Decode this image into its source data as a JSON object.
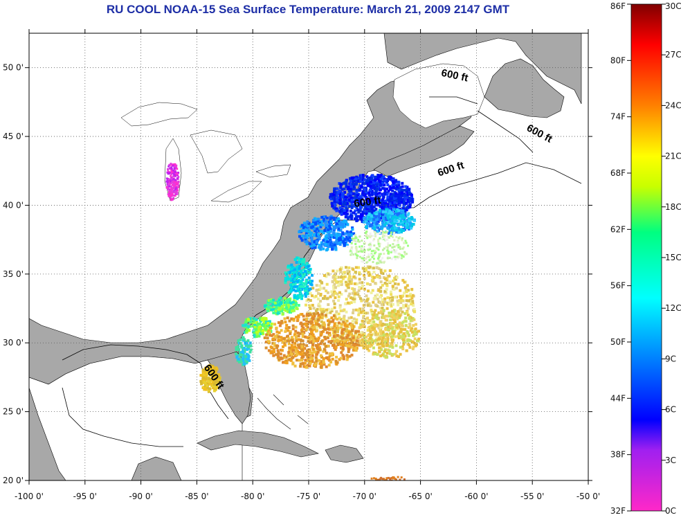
{
  "title": "RU COOL  NOAA-15  Sea Surface Temperature:  March 21, 2009 2147 GMT",
  "colors": {
    "title": "#1d2ea6",
    "land": "#a8a8a8",
    "nodata": "#ffffff",
    "grid": "#555555"
  },
  "map": {
    "lon_range": [
      -100,
      -50
    ],
    "lat_range": [
      20,
      52.5
    ],
    "lon_ticks": [
      {
        "value": -100,
        "label": "-100 0'"
      },
      {
        "value": -95,
        "label": "-95 0'"
      },
      {
        "value": -90,
        "label": "-90 0'"
      },
      {
        "value": -85,
        "label": "-85 0'"
      },
      {
        "value": -80,
        "label": "-80 0'"
      },
      {
        "value": -75,
        "label": "-75 0'"
      },
      {
        "value": -70,
        "label": "-70 0'"
      },
      {
        "value": -65,
        "label": "-65 0'"
      },
      {
        "value": -60,
        "label": "-60 0'"
      },
      {
        "value": -55,
        "label": "-55 0'"
      },
      {
        "value": -50,
        "label": "-50 0'"
      }
    ],
    "lat_ticks": [
      {
        "value": 20,
        "label": "20 0'"
      },
      {
        "value": 25,
        "label": "25 0'"
      },
      {
        "value": 30,
        "label": "30 0'"
      },
      {
        "value": 35,
        "label": "35 0'"
      },
      {
        "value": 40,
        "label": "40 0'"
      },
      {
        "value": 45,
        "label": "45 0'"
      },
      {
        "value": 50,
        "label": "50 0'"
      }
    ],
    "contour_labels": [
      {
        "text": "600 ft",
        "lon": -62.0,
        "lat": 49.2,
        "angle": 12
      },
      {
        "text": "600 ft",
        "lon": -54.5,
        "lat": 45.0,
        "angle": 28
      },
      {
        "text": "600 ft",
        "lon": -62.2,
        "lat": 42.4,
        "angle": -18
      },
      {
        "text": "600 ft",
        "lon": -69.7,
        "lat": 40.0,
        "angle": -8
      },
      {
        "text": "600 ft",
        "lon": -83.7,
        "lat": 27.4,
        "angle": 55
      }
    ]
  },
  "colorbar": {
    "left_labels": [
      "86F",
      "80F",
      "74F",
      "68F",
      "62F",
      "56F",
      "50F",
      "44F",
      "38F",
      "32F"
    ],
    "right_labels": [
      "30C",
      "27C",
      "24C",
      "21C",
      "18C",
      "15C",
      "12C",
      "9C",
      "6C",
      "3C",
      "0C"
    ],
    "stops": [
      "#ff28c8",
      "#a020f0",
      "#0000ff",
      "#0080ff",
      "#00ffff",
      "#00ff80",
      "#c8ff00",
      "#ffff00",
      "#ff8000",
      "#ff0000",
      "#800000"
    ]
  }
}
